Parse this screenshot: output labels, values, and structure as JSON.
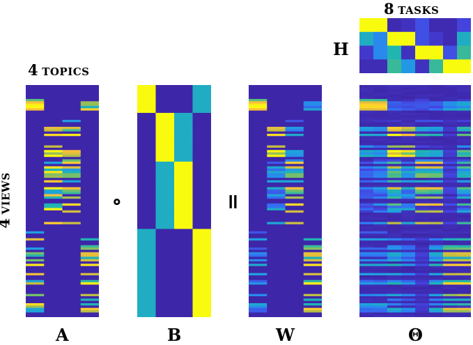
{
  "labels": {
    "topics_count": "4",
    "topics_word": "TOPICS",
    "tasks_count": "8",
    "tasks_word": "TASKS",
    "views_count": "4",
    "views_word": "VIEWS",
    "H": "H",
    "A": "A",
    "B": "B",
    "W": "W",
    "Theta": "Θ",
    "op_hadamard": "∘",
    "op_equals": "="
  },
  "structure": {
    "views": 4,
    "topics": 4,
    "tasks": 8,
    "rows_per_view": [
      12,
      21,
      29,
      38
    ],
    "active_topics_per_view": [
      [
        0,
        3
      ],
      [
        1,
        2
      ],
      [
        1,
        2
      ],
      [
        0,
        3
      ]
    ]
  },
  "B": [
    [
      1,
      0,
      0,
      0.45
    ],
    [
      0,
      1,
      0.45,
      0
    ],
    [
      0,
      0.45,
      1,
      0
    ],
    [
      0.45,
      0,
      0,
      1
    ]
  ],
  "H": [
    [
      1,
      1,
      0.02,
      0.05,
      0.15,
      0.02,
      0.02,
      0.12
    ],
    [
      0.45,
      0.3,
      1,
      1,
      0.15,
      0.08,
      0.02,
      0.45
    ],
    [
      0.08,
      0.3,
      0.5,
      0.05,
      1,
      1,
      0.15,
      0.55
    ],
    [
      0.03,
      0.03,
      0.55,
      0.35,
      0.05,
      0.55,
      1,
      1
    ]
  ],
  "colormap": [
    "#3e26a8",
    "#4444e0",
    "#2f7af5",
    "#1fa0e0",
    "#20b5b0",
    "#5cc07a",
    "#c3bd40",
    "#fdbf3a",
    "#f9fb0e"
  ]
}
